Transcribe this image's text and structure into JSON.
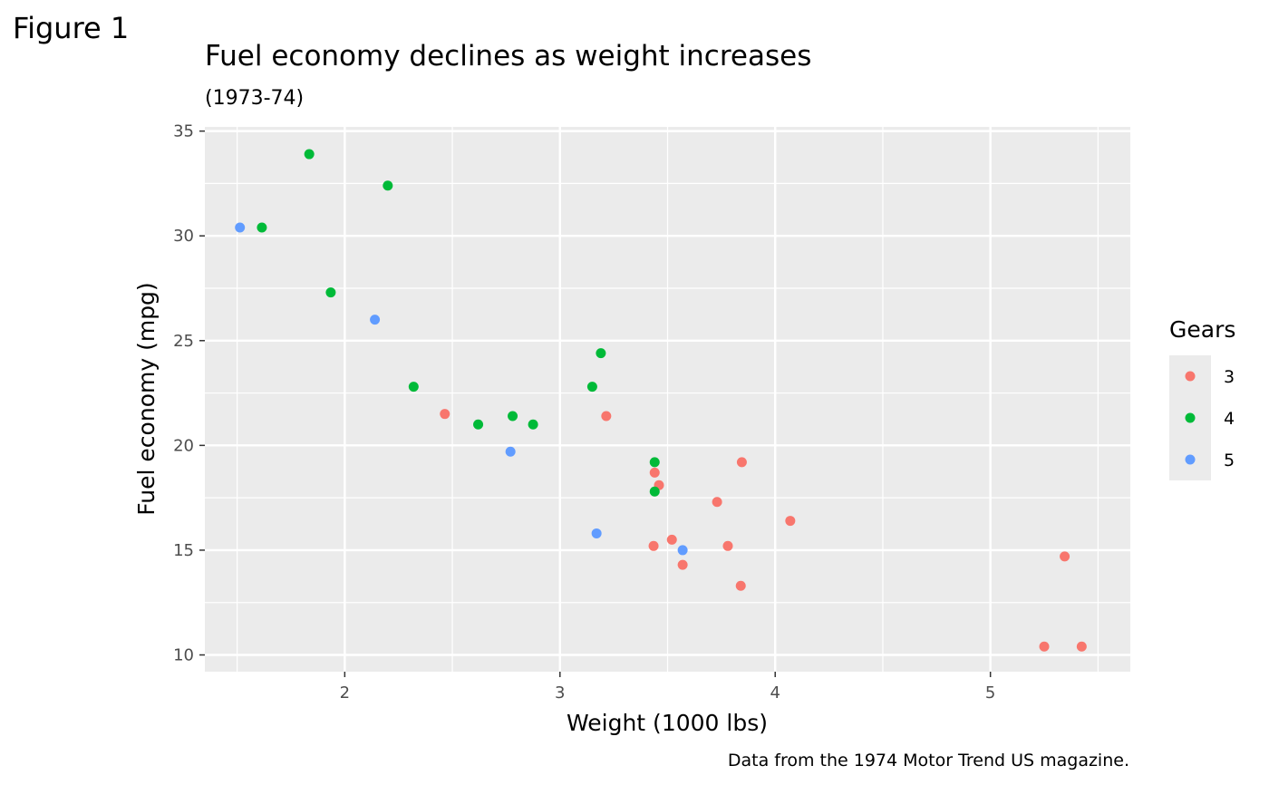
{
  "figure_label": "Figure 1",
  "chart_data": {
    "type": "scatter",
    "title": "Fuel economy declines as weight increases",
    "subtitle": "(1973-74)",
    "xlabel": "Weight (1000 lbs)",
    "ylabel": "Fuel economy (mpg)",
    "caption": "Data from the 1974 Motor Trend US magazine.",
    "xlim": [
      1.35,
      5.65
    ],
    "ylim": [
      9.2,
      35.2
    ],
    "x_ticks": [
      2,
      3,
      4,
      5
    ],
    "x_tick_labels": [
      "2",
      "3",
      "4",
      "5"
    ],
    "y_ticks": [
      10,
      15,
      20,
      25,
      30,
      35
    ],
    "y_tick_labels": [
      "10",
      "15",
      "20",
      "25",
      "30",
      "35"
    ],
    "grid": true,
    "legend_title": "Gears",
    "legend_position": "right",
    "series": [
      {
        "name": "3",
        "color": "#F8766D",
        "points": [
          {
            "x": 2.465,
            "y": 21.5
          },
          {
            "x": 3.215,
            "y": 21.4
          },
          {
            "x": 3.44,
            "y": 18.7
          },
          {
            "x": 3.46,
            "y": 18.1
          },
          {
            "x": 3.57,
            "y": 14.3
          },
          {
            "x": 4.07,
            "y": 16.4
          },
          {
            "x": 3.73,
            "y": 17.3
          },
          {
            "x": 3.78,
            "y": 15.2
          },
          {
            "x": 5.25,
            "y": 10.4
          },
          {
            "x": 5.424,
            "y": 10.4
          },
          {
            "x": 5.345,
            "y": 14.7
          },
          {
            "x": 3.52,
            "y": 15.5
          },
          {
            "x": 3.435,
            "y": 15.2
          },
          {
            "x": 3.84,
            "y": 13.3
          },
          {
            "x": 3.845,
            "y": 19.2
          }
        ]
      },
      {
        "name": "4",
        "color": "#00BA38",
        "points": [
          {
            "x": 2.62,
            "y": 21.0
          },
          {
            "x": 2.875,
            "y": 21.0
          },
          {
            "x": 2.32,
            "y": 22.8
          },
          {
            "x": 3.19,
            "y": 24.4
          },
          {
            "x": 3.15,
            "y": 22.8
          },
          {
            "x": 3.44,
            "y": 19.2
          },
          {
            "x": 3.44,
            "y": 17.8
          },
          {
            "x": 2.2,
            "y": 32.4
          },
          {
            "x": 1.615,
            "y": 30.4
          },
          {
            "x": 1.835,
            "y": 33.9
          },
          {
            "x": 1.935,
            "y": 27.3
          },
          {
            "x": 2.78,
            "y": 21.4
          }
        ]
      },
      {
        "name": "5",
        "color": "#619CFF",
        "points": [
          {
            "x": 2.14,
            "y": 26.0
          },
          {
            "x": 1.513,
            "y": 30.4
          },
          {
            "x": 3.17,
            "y": 15.8
          },
          {
            "x": 2.77,
            "y": 19.7
          },
          {
            "x": 3.57,
            "y": 15.0
          }
        ]
      }
    ]
  }
}
